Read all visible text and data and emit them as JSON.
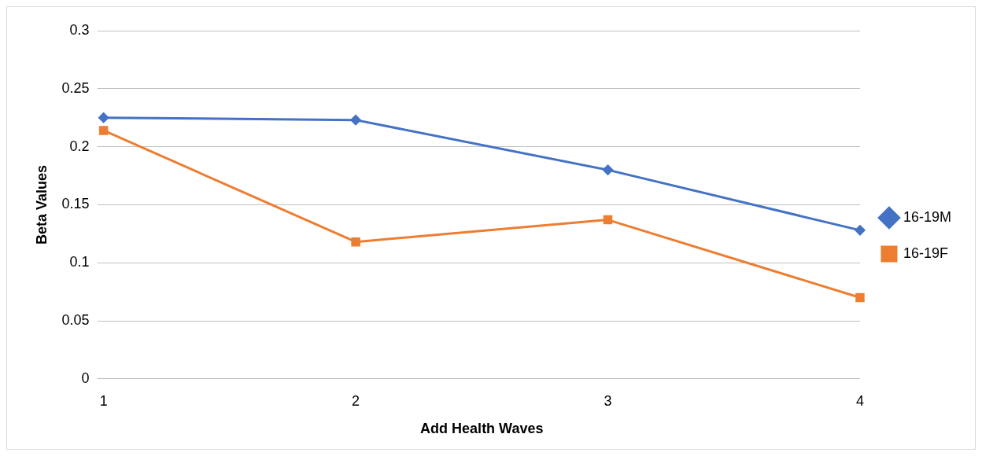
{
  "chart_data": {
    "type": "line",
    "xlabel": "Add Health Waves",
    "ylabel": "Beta Values",
    "categories": [
      "1",
      "2",
      "3",
      "4"
    ],
    "series": [
      {
        "name": "16-19M",
        "color": "#4472c4",
        "marker": "diamond",
        "values": [
          0.225,
          0.223,
          0.18,
          0.128
        ]
      },
      {
        "name": "16-19F",
        "color": "#ed7d31",
        "marker": "square",
        "values": [
          0.214,
          0.118,
          0.137,
          0.07
        ]
      }
    ],
    "ylim": [
      0,
      0.3
    ],
    "yticks": [
      0,
      0.05,
      0.1,
      0.15,
      0.2,
      0.25,
      0.3
    ],
    "grid": "y",
    "legend": "right",
    "line_style": "solid"
  }
}
